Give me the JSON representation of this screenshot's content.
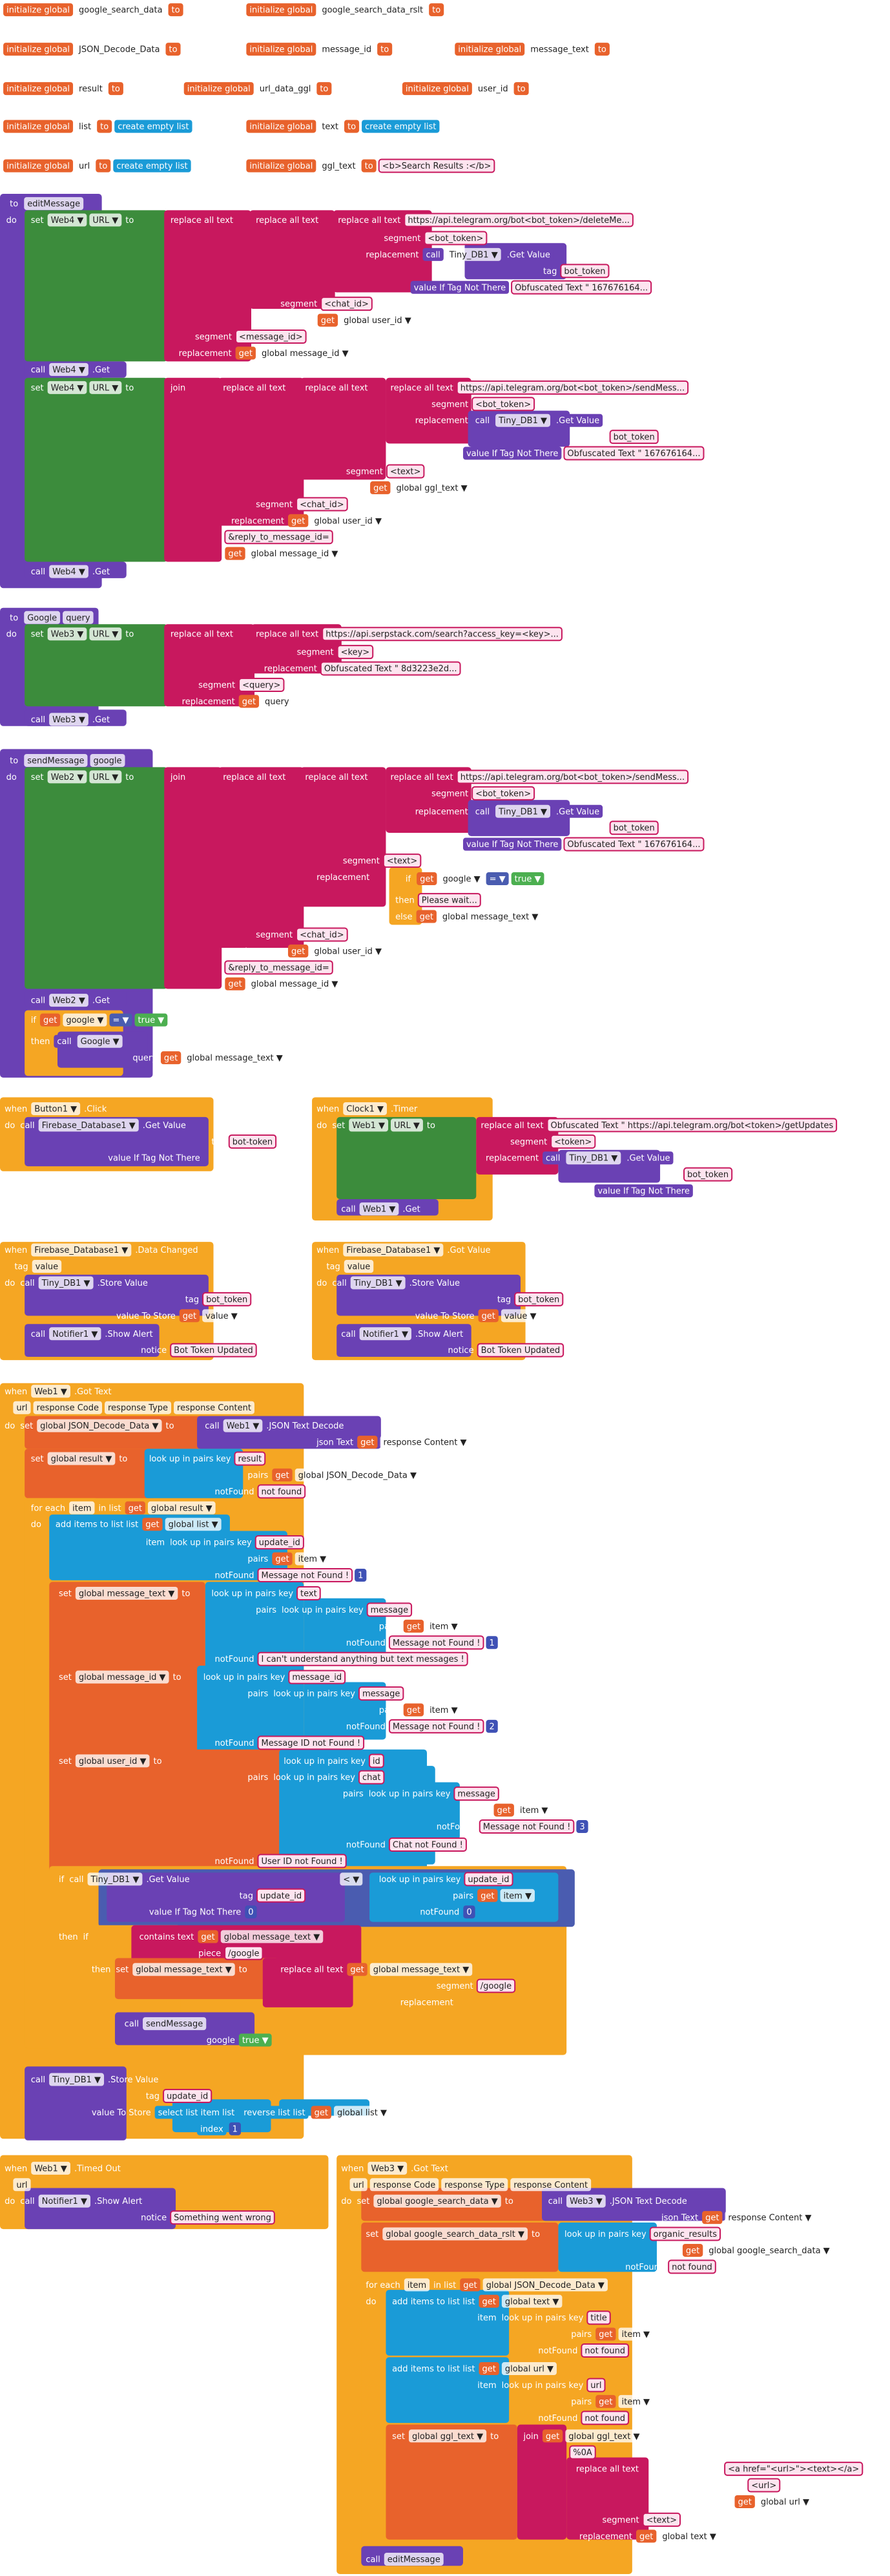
{
  "rows": [
    [
      "initialize global",
      "google_search_data",
      "to"
    ],
    [
      "initialize global",
      "google_search_data_rslt",
      "to"
    ],
    [
      "initialize global",
      "JSON_Decode_Data",
      "to"
    ],
    [
      "initialize global",
      "message_id",
      "to"
    ],
    [
      "initialize global",
      "message_text",
      "to"
    ],
    [
      "initialize global",
      "result",
      "to"
    ],
    [
      "initialize global",
      "url_data_ggl",
      "to"
    ],
    [
      "initialize global",
      "user_id",
      "to"
    ],
    [
      "initialize global",
      "list",
      "to",
      "create empty list"
    ],
    [
      "initialize global",
      "text",
      "to",
      "create empty list"
    ],
    [
      "initialize global",
      "url",
      "to",
      "create empty list"
    ],
    [
      "initialize global",
      "ggl_text",
      "to",
      "<b>Search Results :</b>"
    ],
    [
      "to",
      "editMessage"
    ],
    [
      "do"
    ],
    [
      "set",
      "Web4 ▼",
      "URL ▼",
      "to"
    ],
    [
      "replace all text"
    ],
    [
      "replace all text"
    ],
    [
      "replace all text",
      "https://api.telegram.org/bot<bot_token>/deleteMe..."
    ],
    [
      "segment",
      "<bot_token>"
    ],
    [
      "replacement",
      "call",
      "Tiny_DB1 ▼",
      ".Get Value"
    ],
    [
      "tag",
      "bot_token"
    ],
    [
      "value If Tag Not There",
      "Obfuscated Text \" 167676164..."
    ],
    [
      "segment",
      "<chat_id>"
    ],
    [
      "replacement",
      "get",
      "global user_id ▼"
    ],
    [
      "segment",
      "<message_id>"
    ],
    [
      "replacement",
      "get",
      "global message_id ▼"
    ],
    [
      "call",
      "Web4 ▼",
      ".Get"
    ],
    [
      "set",
      "Web4 ▼",
      "URL ▼",
      "to"
    ],
    [
      "join"
    ],
    [
      "replace all text"
    ],
    [
      "replace all text"
    ],
    [
      "replace all text",
      "https://api.telegram.org/bot<bot_token>/sendMess..."
    ],
    [
      "segment",
      "<bot_token>"
    ],
    [
      "replacement",
      "call",
      "Tiny_DB1 ▼",
      ".Get Value"
    ],
    [
      "tag",
      "bot_token"
    ],
    [
      "value If Tag Not There",
      "Obfuscated Text \" 167676164..."
    ],
    [
      "segment",
      "<text>"
    ],
    [
      "replacement",
      "get",
      "global ggl_text ▼"
    ],
    [
      "segment",
      "<chat_id>"
    ],
    [
      "replacement",
      "get",
      "global user_id ▼"
    ],
    [
      "&reply_to_message_id="
    ],
    [
      "get",
      "global message_id ▼"
    ],
    [
      "call",
      "Web4 ▼",
      ".Get"
    ],
    [
      "to",
      "Google",
      "query"
    ],
    [
      "do"
    ],
    [
      "set",
      "Web3 ▼",
      "URL ▼",
      "to"
    ],
    [
      "replace all text"
    ],
    [
      "replace all text",
      "https://api.serpstack.com/search?access_key=<key>..."
    ],
    [
      "segment",
      "<key>"
    ],
    [
      "replacement",
      "Obfuscated Text \" 8d3223e2d..."
    ],
    [
      "segment",
      "<query>"
    ],
    [
      "replacement",
      "get",
      "query"
    ],
    [
      "call",
      "Web3 ▼",
      ".Get"
    ],
    [
      "to",
      "sendMessage",
      "google"
    ],
    [
      "do"
    ],
    [
      "set",
      "Web2 ▼",
      "URL ▼",
      "to"
    ],
    [
      "join"
    ],
    [
      "replace all text"
    ],
    [
      "replace all text"
    ],
    [
      "replace all text",
      "https://api.telegram.org/bot<bot_token>/sendMess..."
    ],
    [
      "segment",
      "<bot_token>"
    ],
    [
      "replacement",
      "call",
      "Tiny_DB1 ▼",
      ".Get Value"
    ],
    [
      "tag",
      "bot_token"
    ],
    [
      "value If Tag Not There",
      "Obfuscated Text \" 167676164..."
    ],
    [
      "segment",
      "<text>"
    ],
    [
      "replacement"
    ],
    [
      "if",
      "get",
      "google ▼",
      "= ▼",
      "true ▼"
    ],
    [
      "then",
      "Please wait..."
    ],
    [
      "else",
      "get",
      "global message_text ▼"
    ],
    [
      "segment",
      "<chat_id>"
    ],
    [
      "replacement",
      "get",
      "global user_id ▼"
    ],
    [
      "&reply_to_message_id="
    ],
    [
      "get",
      "global message_id ▼"
    ],
    [
      "call",
      "Web2 ▼",
      ".Get"
    ],
    [
      "if",
      "get",
      "google ▼",
      "= ▼",
      "true ▼"
    ],
    [
      "then",
      "call",
      "Google ▼"
    ],
    [
      "query",
      "get",
      "global message_text ▼"
    ],
    [
      "when",
      "Button1 ▼",
      ".Click"
    ],
    [
      "do",
      "call",
      "Firebase_Database1 ▼",
      ".Get Value"
    ],
    [
      "tag",
      "bot-token"
    ],
    [
      "value If Tag Not There"
    ],
    [
      "when",
      "Clock1 ▼",
      ".Timer"
    ],
    [
      "do",
      "set",
      "Web1 ▼",
      "URL ▼",
      "to"
    ],
    [
      "replace all text",
      "Obfuscated Text \" https://api.telegram.org/bot<token>/getUpdates"
    ],
    [
      "segment",
      "<token>"
    ],
    [
      "replacement",
      "call",
      "Tiny_DB1 ▼",
      ".Get Value"
    ],
    [
      "tag",
      "bot_token"
    ],
    [
      "value If Tag Not There"
    ],
    [
      "call",
      "Web1 ▼",
      ".Get"
    ],
    [
      "when",
      "Firebase_Database1 ▼",
      ".Data Changed"
    ],
    [
      "tag",
      "value"
    ],
    [
      "do",
      "call",
      "Tiny_DB1 ▼",
      ".Store Value"
    ],
    [
      "tag",
      "bot_token"
    ],
    [
      "value To Store",
      "get",
      "value ▼"
    ],
    [
      "call",
      "Notifier1 ▼",
      ".Show Alert"
    ],
    [
      "notice",
      "Bot Token Updated"
    ],
    [
      "when",
      "Firebase_Database1 ▼",
      ".Got Value"
    ],
    [
      "tag",
      "value"
    ],
    [
      "do",
      "call",
      "Tiny_DB1 ▼",
      ".Store Value"
    ],
    [
      "tag",
      "bot_token"
    ],
    [
      "value To Store",
      "get",
      "value ▼"
    ],
    [
      "call",
      "Notifier1 ▼",
      ".Show Alert"
    ],
    [
      "notice",
      "Bot Token Updated"
    ],
    [
      "when",
      "Web1 ▼",
      ".Got Text"
    ],
    [
      "url",
      "response Code",
      "response Type",
      "response Content"
    ],
    [
      "do",
      "set",
      "global JSON_Decode_Data ▼",
      "to"
    ],
    [
      "call",
      "Web1 ▼",
      ".JSON Text Decode"
    ],
    [
      "json Text",
      "get",
      "response Content ▼"
    ],
    [
      "set",
      "global result ▼",
      "to"
    ],
    [
      "look up in pairs  key",
      "result"
    ],
    [
      "pairs",
      "get",
      "global JSON_Decode_Data ▼"
    ],
    [
      "notFound",
      "not found"
    ],
    [
      "for each",
      "item",
      "in list",
      "get",
      "global result ▼"
    ],
    [
      "do"
    ],
    [
      "add items to list  list",
      "get",
      "global list ▼"
    ],
    [
      "item",
      "look up in pairs  key",
      "update_id"
    ],
    [
      "pairs",
      "get",
      "item ▼"
    ],
    [
      "notFound",
      "Message not Found ! ",
      "1"
    ],
    [
      "set",
      "global message_text ▼",
      "to"
    ],
    [
      "look up in pairs  key",
      "text"
    ],
    [
      "pairs",
      "look up in pairs  key",
      "message"
    ],
    [
      "pairs",
      "get",
      "item ▼"
    ],
    [
      "notFound",
      "Message not Found ! ",
      "1"
    ],
    [
      "notFound",
      "I can't understand anything but text messages !"
    ],
    [
      "set",
      "global message_id ▼",
      "to"
    ],
    [
      "look up in pairs  key",
      "message_id"
    ],
    [
      "pairs",
      "look up in pairs  key",
      "message"
    ],
    [
      "pairs",
      "get",
      "item ▼"
    ],
    [
      "notFound",
      "Message not Found ! ",
      "2"
    ],
    [
      "notFound",
      "Message ID not Found !"
    ],
    [
      "set",
      "global user_id ▼",
      "to"
    ],
    [
      "look up in pairs  key",
      "id"
    ],
    [
      "pairs",
      "look up in pairs  key",
      "chat"
    ],
    [
      "pairs",
      "look up in pairs  key",
      "message"
    ],
    [
      "pairs",
      "get",
      "item ▼"
    ],
    [
      "notFound",
      "Message not Found ! ",
      "3"
    ],
    [
      "notFound",
      "Chat not Found !"
    ],
    [
      "notFound",
      "User ID not Found !"
    ],
    [
      "if",
      "call",
      "Tiny_DB1 ▼",
      ".Get Value"
    ],
    [
      "< ▼"
    ],
    [
      "look up in pairs  key",
      "update_id"
    ],
    [
      "tag",
      "update_id"
    ],
    [
      "pairs",
      "get",
      "item ▼"
    ],
    [
      "value If Tag Not There",
      "0"
    ],
    [
      "notFound",
      "0"
    ],
    [
      "then",
      "if"
    ],
    [
      "contains text",
      "get",
      "global message_text ▼"
    ],
    [
      "piece",
      "/google"
    ],
    [
      "then",
      "set",
      "global message_text ▼",
      "to"
    ],
    [
      "replace all text",
      "get",
      "global message_text ▼"
    ],
    [
      "segment",
      "/google"
    ],
    [
      "replacement"
    ],
    [
      "call",
      "sendMessage"
    ],
    [
      "google",
      "true ▼"
    ],
    [
      "call",
      "Tiny_DB1 ▼",
      ".Store Value"
    ],
    [
      "tag",
      "update_id"
    ],
    [
      "value To Store",
      "select list item  list",
      "reverse list  list",
      "get",
      "global list ▼"
    ],
    [
      "index",
      "1"
    ],
    [
      "when",
      "Web1 ▼",
      ".Timed Out"
    ],
    [
      "url"
    ],
    [
      "do",
      "call",
      "Notifier1 ▼",
      ".Show Alert"
    ],
    [
      "notice",
      "Something went wrong"
    ],
    [
      "when",
      "Web3 ▼",
      ".Got Text"
    ],
    [
      "url",
      "response Code",
      "response Type",
      "response Content"
    ],
    [
      "do",
      "set",
      "global google_search_data ▼",
      "to"
    ],
    [
      "call",
      "Web3 ▼",
      ".JSON Text Decode"
    ],
    [
      "json Text",
      "get",
      "response Content ▼"
    ],
    [
      "set",
      "global google_search_data_rslt ▼",
      "to"
    ],
    [
      "look up in pairs  key",
      "organic_results"
    ],
    [
      "pairs",
      "get",
      "global google_search_data ▼"
    ],
    [
      "notFound",
      "not found"
    ],
    [
      "for each",
      "item",
      "in list",
      "get",
      "global JSON_Decode_Data ▼"
    ],
    [
      "do"
    ],
    [
      "add items to list  list",
      "get",
      "global text ▼"
    ],
    [
      "item",
      "look up in pairs  key",
      "title"
    ],
    [
      "pairs",
      "get",
      "item ▼"
    ],
    [
      "notFound",
      "not found"
    ],
    [
      "add items to list  list",
      "get",
      "global url ▼"
    ],
    [
      "item",
      "look up in pairs  key",
      "url"
    ],
    [
      "pairs",
      "get",
      "item ▼"
    ],
    [
      "notFound",
      "not found"
    ],
    [
      "set",
      "global ggl_text ▼",
      "to"
    ],
    [
      "join",
      "get",
      "global ggl_text ▼"
    ],
    [
      "%0A"
    ],
    [
      "replace all text"
    ],
    [
      "replace all text",
      "<a href=\"<url>\"><text></a>"
    ],
    [
      "segment",
      "<url>"
    ],
    [
      "replacement",
      "get",
      "global url ▼"
    ],
    [
      "segment",
      "<text>"
    ],
    [
      "replacement",
      "get",
      "global text ▼"
    ],
    [
      "call",
      "editMessage"
    ]
  ]
}
